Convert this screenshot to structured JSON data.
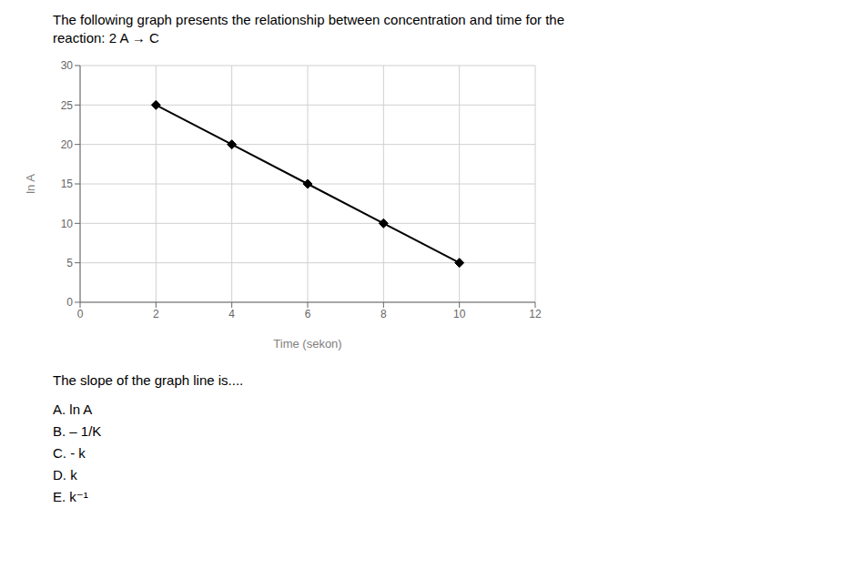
{
  "chart_data": {
    "type": "line",
    "title": "The following graph presents the relationship between concentration and time for the",
    "subtitle": "reaction: 2 A → C",
    "xlabel": "Time (sekon)",
    "ylabel": "ln A",
    "x": [
      2,
      4,
      6,
      8,
      10
    ],
    "values": [
      25,
      20,
      15,
      10,
      5
    ],
    "xlim": [
      0,
      12
    ],
    "ylim": [
      0,
      30
    ],
    "xticks": [
      0,
      2,
      4,
      6,
      8,
      10,
      12
    ],
    "yticks": [
      0,
      5,
      10,
      15,
      20,
      25,
      30
    ],
    "grid": true,
    "color": "#000000",
    "marker": "diamond",
    "annotations": [
      "The slope of the graph line is....",
      "A. ln A",
      "B. – 1/K",
      "C. - k",
      "D. k",
      "E. k⁻¹"
    ]
  }
}
